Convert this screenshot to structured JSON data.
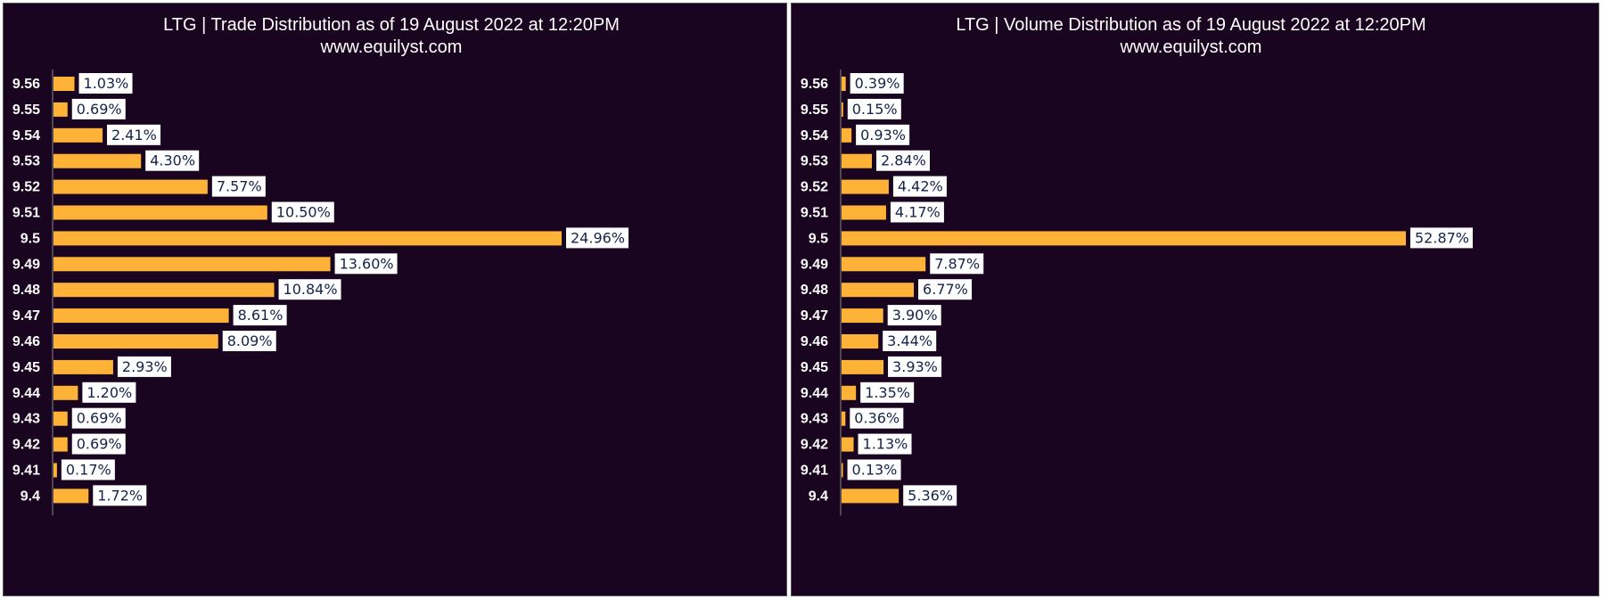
{
  "chart_data": [
    {
      "type": "bar",
      "orientation": "horizontal",
      "title": "LTG | Trade Distribution as of 19 August 2022 at 12:20PM",
      "subtitle": "www.equilyst.com",
      "categories": [
        "9.56",
        "9.55",
        "9.54",
        "9.53",
        "9.52",
        "9.51",
        "9.5",
        "9.49",
        "9.48",
        "9.47",
        "9.46",
        "9.45",
        "9.44",
        "9.43",
        "9.42",
        "9.41",
        "9.4"
      ],
      "values": [
        1.03,
        0.69,
        2.41,
        4.3,
        7.57,
        10.5,
        24.96,
        13.6,
        10.84,
        8.61,
        8.09,
        2.93,
        1.2,
        0.69,
        0.69,
        0.17,
        1.72
      ],
      "data_labels": [
        "1.03%",
        "0.69%",
        "2.41%",
        "4.30%",
        "7.57%",
        "10.50%",
        "24.96%",
        "13.60%",
        "10.84%",
        "8.61%",
        "8.09%",
        "2.93%",
        "1.20%",
        "0.69%",
        "0.69%",
        "0.17%",
        "1.72%"
      ],
      "unit": "%",
      "xlim": [
        0,
        24.96
      ],
      "grid": false,
      "bar_color": "#ffb238"
    },
    {
      "type": "bar",
      "orientation": "horizontal",
      "title": "LTG | Volume Distribution as of 19 August 2022 at 12:20PM",
      "subtitle": "www.equilyst.com",
      "categories": [
        "9.56",
        "9.55",
        "9.54",
        "9.53",
        "9.52",
        "9.51",
        "9.5",
        "9.49",
        "9.48",
        "9.47",
        "9.46",
        "9.45",
        "9.44",
        "9.43",
        "9.42",
        "9.41",
        "9.4"
      ],
      "values": [
        0.39,
        0.15,
        0.93,
        2.84,
        4.42,
        4.17,
        52.87,
        7.87,
        6.77,
        3.9,
        3.44,
        3.93,
        1.35,
        0.36,
        1.13,
        0.13,
        5.36
      ],
      "data_labels": [
        "0.39%",
        "0.15%",
        "0.93%",
        "2.84%",
        "4.42%",
        "4.17%",
        "52.87%",
        "7.87%",
        "6.77%",
        "3.90%",
        "3.44%",
        "3.93%",
        "1.35%",
        "0.36%",
        "1.13%",
        "0.13%",
        "5.36%"
      ],
      "unit": "%",
      "xlim": [
        0,
        52.87
      ],
      "grid": false,
      "bar_color": "#ffb238"
    }
  ]
}
